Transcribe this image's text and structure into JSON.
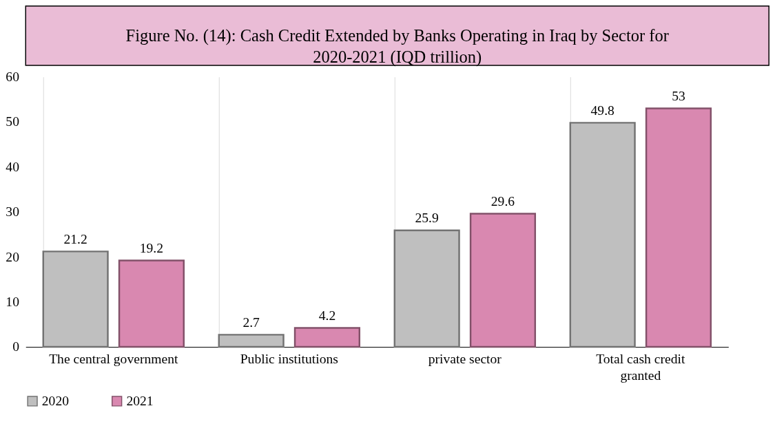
{
  "chart_data": {
    "type": "bar",
    "title": "Figure No. (14): Cash Credit Extended by Banks Operating in Iraq by Sector for 2020-2021 (IQD trillion)",
    "categories": [
      "The central government",
      "Public institutions",
      "private sector",
      "Total cash credit granted"
    ],
    "series": [
      {
        "name": "2020",
        "color": "#bfbfbf",
        "values": [
          21.2,
          2.7,
          25.9,
          49.8
        ]
      },
      {
        "name": "2021",
        "color": "#d988b0",
        "values": [
          19.2,
          4.2,
          29.6,
          53
        ]
      }
    ],
    "ylim": [
      0,
      60
    ],
    "yticks": [
      0,
      10,
      20,
      30,
      40,
      50,
      60
    ],
    "grid": "x",
    "legend": "bottom",
    "data_labels": true
  }
}
